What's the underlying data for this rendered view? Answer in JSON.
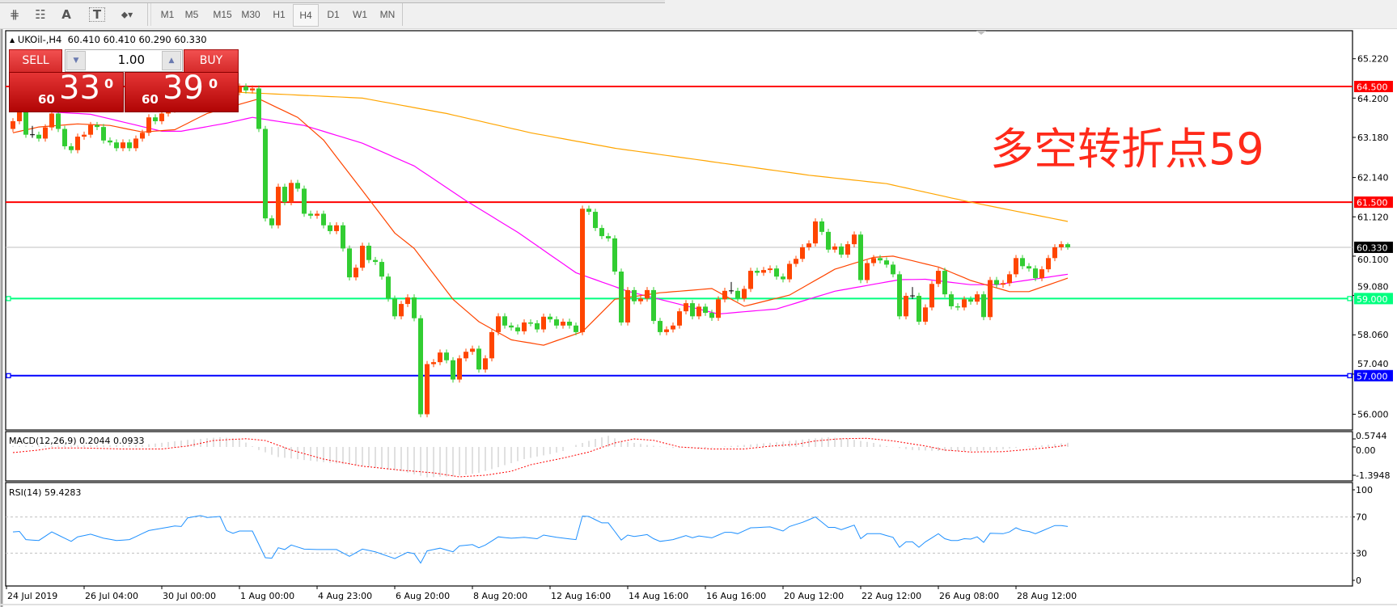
{
  "toolbar": {
    "tools": [
      {
        "name": "indicators-e-icon",
        "glyph": "⋕"
      },
      {
        "name": "periodicity-f-icon",
        "glyph": "☷"
      },
      {
        "name": "text-tool-icon",
        "glyph": "A"
      },
      {
        "name": "text-label-icon",
        "glyph": "T"
      },
      {
        "name": "arrows-icon",
        "glyph": "⬥▾"
      }
    ],
    "timeframes": [
      "M1",
      "M5",
      "M15",
      "M30",
      "H1",
      "H4",
      "D1",
      "W1",
      "MN"
    ],
    "selected_timeframe": "H4"
  },
  "header": {
    "arrow": "▲",
    "symbol": "UKOil-,H4",
    "ohlc": "60.410 60.410 60.290 60.330"
  },
  "trade_panel": {
    "sell_label": "SELL",
    "buy_label": "BUY",
    "lot": "1.00",
    "sell_price": {
      "big_figure": "60",
      "pips": "33",
      "fraction": "0"
    },
    "buy_price": {
      "big_figure": "60",
      "pips": "39",
      "fraction": "0"
    }
  },
  "annotation": "多空转折点59",
  "indicators": {
    "macd_label": "MACD(12,26,9) 0.2044 0.0933",
    "rsi_label": "RSI(14) 59.4283"
  },
  "colors": {
    "bull_candle": "#ff4500",
    "bear_candle": "#32cd32",
    "ma_slow": "#ffa500",
    "ma_mid": "#ff00ff",
    "ma_fast": "#ff4500",
    "resistance": "#ff0000",
    "support_59": "#00ff7f",
    "support_57": "#0000ff",
    "bid_line": "#c0c0c0",
    "rsi_line": "#1e90ff",
    "macd_hist": "#c0c0c0",
    "macd_signal": "#ff0000"
  },
  "chart_data": {
    "type": "candlestick",
    "symbol": "UKOil-",
    "timeframe": "H4",
    "price_axis": {
      "ylim": [
        55.4,
        65.9
      ],
      "ticks": [
        "65.220",
        "64.200",
        "63.180",
        "62.140",
        "61.120",
        "60.100",
        "59.080",
        "58.060",
        "57.040",
        "56.000"
      ]
    },
    "time_axis": {
      "labels": [
        {
          "bar": -1,
          "label": "24 Jul 2019"
        },
        {
          "bar": 11,
          "label": "26 Jul 04:00"
        },
        {
          "bar": 23,
          "label": "30 Jul 00:00"
        },
        {
          "bar": 35,
          "label": "1 Aug 00:00"
        },
        {
          "bar": 47,
          "label": "4 Aug 23:00"
        },
        {
          "bar": 59,
          "label": "6 Aug 20:00"
        },
        {
          "bar": 71,
          "label": "8 Aug 20:00"
        },
        {
          "bar": 83,
          "label": "12 Aug 16:00"
        },
        {
          "bar": 95,
          "label": "14 Aug 16:00"
        },
        {
          "bar": 107,
          "label": "16 Aug 16:00"
        },
        {
          "bar": 119,
          "label": "20 Aug 12:00"
        },
        {
          "bar": 131,
          "label": "22 Aug 12:00"
        },
        {
          "bar": 143,
          "label": "26 Aug 08:00"
        },
        {
          "bar": 155,
          "label": "28 Aug 12:00"
        }
      ]
    },
    "first_open": 63.4,
    "closes": [
      63.6,
      63.9,
      63.25,
      63.25,
      63.15,
      63.44,
      63.8,
      63.4,
      62.95,
      62.85,
      63.2,
      63.25,
      63.5,
      63.45,
      63.1,
      63.05,
      62.9,
      63.05,
      62.9,
      63.15,
      63.3,
      63.7,
      63.6,
      63.8,
      63.9,
      64.0,
      64.1,
      64.0,
      64.2,
      64.3,
      64.25,
      64.4,
      64.3,
      64.45,
      64.35,
      64.5,
      64.4,
      64.45,
      63.4,
      61.08,
      60.9,
      61.9,
      61.5,
      62.0,
      61.85,
      61.2,
      61.15,
      61.2,
      60.9,
      60.75,
      60.9,
      60.3,
      59.55,
      59.8,
      60.37,
      60.0,
      59.95,
      59.57,
      59.0,
      58.54,
      58.86,
      59.03,
      58.49,
      56.0,
      57.3,
      57.35,
      57.6,
      57.4,
      56.9,
      57.45,
      57.62,
      57.7,
      57.16,
      57.45,
      58.13,
      58.54,
      58.3,
      58.25,
      58.15,
      58.38,
      58.36,
      58.2,
      58.53,
      58.46,
      58.3,
      58.4,
      58.3,
      58.13,
      61.33,
      61.25,
      60.83,
      60.62,
      60.56,
      59.7,
      58.38,
      59.22,
      58.93,
      59.0,
      59.22,
      58.42,
      58.13,
      58.2,
      58.3,
      58.67,
      58.88,
      58.54,
      58.79,
      58.63,
      58.5,
      58.98,
      59.2,
      59.2,
      59.0,
      59.25,
      59.72,
      59.67,
      59.74,
      59.78,
      59.57,
      59.5,
      59.9,
      60.03,
      60.33,
      60.43,
      61.0,
      60.73,
      60.27,
      60.35,
      60.14,
      60.41,
      60.66,
      59.48,
      59.92,
      60.05,
      59.99,
      59.88,
      59.63,
      58.54,
      59.07,
      59.07,
      58.4,
      58.77,
      59.38,
      59.72,
      59.11,
      58.8,
      58.77,
      58.98,
      58.92,
      59.11,
      58.52,
      59.48,
      59.36,
      59.4,
      59.63,
      60.05,
      59.84,
      59.78,
      59.53,
      59.76,
      60.05,
      60.33,
      60.41,
      60.33
    ],
    "last_bar": {
      "open": 60.41,
      "high": 60.41,
      "low": 60.29,
      "close": 60.33
    },
    "moving_averages": [
      {
        "role": "slow",
        "points": [
          [
            23,
            64.5
          ],
          [
            35,
            64.35
          ],
          [
            54,
            64.2
          ],
          [
            67,
            63.8
          ],
          [
            80,
            63.3
          ],
          [
            93,
            62.9
          ],
          [
            108,
            62.55
          ],
          [
            123,
            62.2
          ],
          [
            135,
            61.98
          ],
          [
            148,
            61.5
          ],
          [
            163,
            61.0
          ]
        ]
      },
      {
        "role": "mid",
        "points": [
          [
            0,
            63.9
          ],
          [
            12,
            63.78
          ],
          [
            23,
            63.34
          ],
          [
            26,
            63.34
          ],
          [
            33,
            63.55
          ],
          [
            37,
            63.7
          ],
          [
            45,
            63.49
          ],
          [
            54,
            63.03
          ],
          [
            62,
            62.44
          ],
          [
            70,
            61.54
          ],
          [
            78,
            60.72
          ],
          [
            87,
            59.67
          ],
          [
            95,
            59.19
          ],
          [
            109,
            58.6
          ],
          [
            118,
            58.73
          ],
          [
            127,
            59.19
          ],
          [
            137,
            59.49
          ],
          [
            141,
            59.5
          ],
          [
            148,
            59.36
          ],
          [
            152,
            59.36
          ],
          [
            163,
            59.63
          ]
        ]
      },
      {
        "role": "fast",
        "points": [
          [
            0,
            63.3
          ],
          [
            4,
            63.45
          ],
          [
            10,
            63.53
          ],
          [
            15,
            63.49
          ],
          [
            20,
            63.32
          ],
          [
            25,
            63.38
          ],
          [
            30,
            63.8
          ],
          [
            38,
            64.18
          ],
          [
            44,
            63.7
          ],
          [
            48,
            63.11
          ],
          [
            54,
            61.8
          ],
          [
            59,
            60.7
          ],
          [
            62,
            60.3
          ],
          [
            68,
            58.98
          ],
          [
            72,
            58.4
          ],
          [
            77,
            57.93
          ],
          [
            82,
            57.79
          ],
          [
            88,
            58.14
          ],
          [
            93,
            58.98
          ],
          [
            100,
            59.15
          ],
          [
            108,
            59.26
          ],
          [
            113,
            58.8
          ],
          [
            120,
            59.09
          ],
          [
            127,
            59.76
          ],
          [
            133,
            60.07
          ],
          [
            136,
            60.1
          ],
          [
            143,
            59.82
          ],
          [
            148,
            59.47
          ],
          [
            154,
            59.18
          ],
          [
            157,
            59.18
          ],
          [
            163,
            59.53
          ]
        ]
      }
    ],
    "horizontal_lines": [
      {
        "price": 64.5,
        "label": "64.500",
        "color": "#ff0000"
      },
      {
        "price": 61.5,
        "label": "61.500",
        "color": "#ff0000"
      },
      {
        "price": 59.0,
        "label": "59.000",
        "color": "#00ff7f"
      },
      {
        "price": 57.0,
        "label": "57.000",
        "color": "#0000ff"
      }
    ],
    "bid": {
      "price": 60.33,
      "label": "60.330"
    },
    "macd": {
      "params": "12,26,9",
      "main": 0.2044,
      "signal": 0.0933,
      "ticks": [
        "0.5744",
        "0.00",
        "-1.3948"
      ],
      "ylim": [
        -1.3948,
        0.5744
      ],
      "hist_points": [
        [
          0,
          0.05
        ],
        [
          20,
          0.1
        ],
        [
          27,
          0.35
        ],
        [
          32,
          0.48
        ],
        [
          35,
          0.4
        ],
        [
          38,
          -0.15
        ],
        [
          41,
          -0.5
        ],
        [
          48,
          -0.75
        ],
        [
          54,
          -0.95
        ],
        [
          60,
          -1.2
        ],
        [
          64,
          -1.5
        ],
        [
          68,
          -1.45
        ],
        [
          72,
          -1.28
        ],
        [
          75,
          -1.0
        ],
        [
          79,
          -0.6
        ],
        [
          83,
          -0.35
        ],
        [
          85,
          -0.2
        ],
        [
          86,
          0.0
        ],
        [
          90,
          0.4
        ],
        [
          92,
          0.55
        ],
        [
          94,
          0.3
        ],
        [
          98,
          0.1
        ],
        [
          102,
          -0.05
        ],
        [
          107,
          -0.05
        ],
        [
          113,
          0.1
        ],
        [
          118,
          0.23
        ],
        [
          123,
          0.4
        ],
        [
          126,
          0.48
        ],
        [
          129,
          0.4
        ],
        [
          133,
          0.2
        ],
        [
          135,
          0.04
        ],
        [
          139,
          -0.15
        ],
        [
          143,
          -0.2
        ],
        [
          148,
          -0.2
        ],
        [
          152,
          -0.15
        ],
        [
          156,
          0.0
        ],
        [
          159,
          0.08
        ],
        [
          163,
          0.2044
        ]
      ],
      "signal_points": [
        [
          0,
          -0.28
        ],
        [
          4,
          -0.15
        ],
        [
          6,
          -0.05
        ],
        [
          11,
          -0.05
        ],
        [
          17,
          -0.1
        ],
        [
          23,
          -0.1
        ],
        [
          27,
          0.05
        ],
        [
          31,
          0.32
        ],
        [
          36,
          0.41
        ],
        [
          39,
          0.32
        ],
        [
          43,
          -0.15
        ],
        [
          48,
          -0.6
        ],
        [
          54,
          -0.95
        ],
        [
          60,
          -1.15
        ],
        [
          65,
          -1.28
        ],
        [
          69,
          -1.48
        ],
        [
          73,
          -1.4
        ],
        [
          77,
          -1.2
        ],
        [
          80,
          -0.88
        ],
        [
          85,
          -0.55
        ],
        [
          89,
          -0.25
        ],
        [
          93,
          0.2
        ],
        [
          96,
          0.4
        ],
        [
          99,
          0.33
        ],
        [
          103,
          0.0
        ],
        [
          108,
          -0.1
        ],
        [
          113,
          -0.1
        ],
        [
          117,
          0.04
        ],
        [
          121,
          0.13
        ],
        [
          124,
          0.3
        ],
        [
          128,
          0.41
        ],
        [
          132,
          0.43
        ],
        [
          136,
          0.3
        ],
        [
          141,
          0.05
        ],
        [
          144,
          -0.15
        ],
        [
          148,
          -0.25
        ],
        [
          153,
          -0.23
        ],
        [
          157,
          -0.12
        ],
        [
          161,
          0.0
        ],
        [
          163,
          0.0933
        ]
      ]
    },
    "rsi": {
      "period": 14,
      "value": 59.4283,
      "ticks": [
        "100",
        "70",
        "30",
        "0"
      ],
      "levels": [
        70,
        30
      ],
      "points": [
        [
          0,
          53.5
        ],
        [
          1,
          54
        ],
        [
          2,
          45
        ],
        [
          4,
          44
        ],
        [
          6,
          53.5
        ],
        [
          9,
          43
        ],
        [
          10,
          48
        ],
        [
          12,
          51
        ],
        [
          14,
          46.5
        ],
        [
          16,
          44
        ],
        [
          18,
          45
        ],
        [
          21,
          55
        ],
        [
          23,
          57.5
        ],
        [
          25,
          60
        ],
        [
          26,
          59.5
        ],
        [
          27,
          69
        ],
        [
          29,
          71.5
        ],
        [
          30,
          69.5
        ],
        [
          32,
          70.5
        ],
        [
          33,
          55
        ],
        [
          34,
          52
        ],
        [
          35,
          54.5
        ],
        [
          37,
          54.5
        ],
        [
          39,
          25
        ],
        [
          40,
          24.5
        ],
        [
          41,
          36
        ],
        [
          42,
          34
        ],
        [
          43,
          39
        ],
        [
          45,
          34.5
        ],
        [
          47,
          34
        ],
        [
          50,
          34
        ],
        [
          52,
          26.5
        ],
        [
          54,
          34.5
        ],
        [
          56,
          31.5
        ],
        [
          59,
          24
        ],
        [
          61,
          31
        ],
        [
          62,
          29.5
        ],
        [
          63,
          19
        ],
        [
          64,
          32.5
        ],
        [
          66,
          35.5
        ],
        [
          68,
          31.5
        ],
        [
          69,
          38
        ],
        [
          71,
          39.5
        ],
        [
          72,
          36
        ],
        [
          73,
          39
        ],
        [
          75,
          48
        ],
        [
          77,
          46.5
        ],
        [
          79,
          47.5
        ],
        [
          81,
          46
        ],
        [
          82,
          50
        ],
        [
          84,
          47.5
        ],
        [
          87,
          45
        ],
        [
          88,
          71
        ],
        [
          89,
          70.5
        ],
        [
          91,
          63.5
        ],
        [
          92,
          63.5
        ],
        [
          94,
          44.5
        ],
        [
          95,
          50
        ],
        [
          96,
          48.5
        ],
        [
          98,
          50.5
        ],
        [
          99,
          46
        ],
        [
          100,
          43
        ],
        [
          102,
          45
        ],
        [
          104,
          49.5
        ],
        [
          105,
          47
        ],
        [
          106,
          49
        ],
        [
          108,
          47
        ],
        [
          110,
          53
        ],
        [
          111,
          53
        ],
        [
          112,
          51.5
        ],
        [
          114,
          58
        ],
        [
          117,
          59
        ],
        [
          119,
          54.5
        ],
        [
          120,
          59.5
        ],
        [
          122,
          64
        ],
        [
          124,
          70
        ],
        [
          126,
          58.5
        ],
        [
          127,
          58.5
        ],
        [
          128,
          56
        ],
        [
          130,
          61
        ],
        [
          131,
          46
        ],
        [
          132,
          51.5
        ],
        [
          134,
          51.5
        ],
        [
          136,
          47.5
        ],
        [
          137,
          36.5
        ],
        [
          138,
          42.5
        ],
        [
          139,
          42.5
        ],
        [
          140,
          36.5
        ],
        [
          141,
          42.5
        ],
        [
          143,
          51.5
        ],
        [
          144,
          46
        ],
        [
          145,
          44
        ],
        [
          146,
          44
        ],
        [
          147,
          46
        ],
        [
          148,
          45.5
        ],
        [
          149,
          48
        ],
        [
          150,
          42
        ],
        [
          151,
          52
        ],
        [
          153,
          51.5
        ],
        [
          154,
          53.5
        ],
        [
          155,
          58
        ],
        [
          156,
          55
        ],
        [
          157,
          54
        ],
        [
          158,
          51.5
        ],
        [
          161,
          60.5
        ],
        [
          162,
          60.5
        ],
        [
          163,
          59.5
        ]
      ]
    }
  }
}
